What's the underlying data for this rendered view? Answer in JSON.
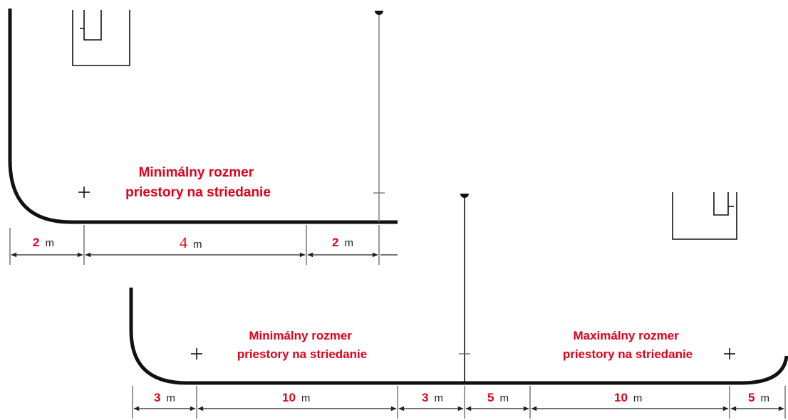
{
  "colors": {
    "accent": "#e2001a",
    "line": "#111111",
    "thin_line": "#333333",
    "background": "#ffffff"
  },
  "diagram_top": {
    "zone_label_line1": "Minimálny rozmer",
    "zone_label_line2": "priestory na striedanie",
    "dimensions": [
      {
        "value": "2",
        "unit": "m"
      },
      {
        "value": "4",
        "unit": "m"
      },
      {
        "value": "2",
        "unit": "m"
      }
    ]
  },
  "diagram_bottom": {
    "min_label_line1": "Minimálny rozmer",
    "min_label_line2": "priestory na striedanie",
    "max_label_line1": "Maximálny rozmer",
    "max_label_line2": "priestory na striedanie",
    "dimensions": [
      {
        "value": "3",
        "unit": "m"
      },
      {
        "value": "10",
        "unit": "m"
      },
      {
        "value": "3",
        "unit": "m"
      },
      {
        "value": "5",
        "unit": "m"
      },
      {
        "value": "10",
        "unit": "m"
      },
      {
        "value": "5",
        "unit": "m"
      }
    ]
  }
}
